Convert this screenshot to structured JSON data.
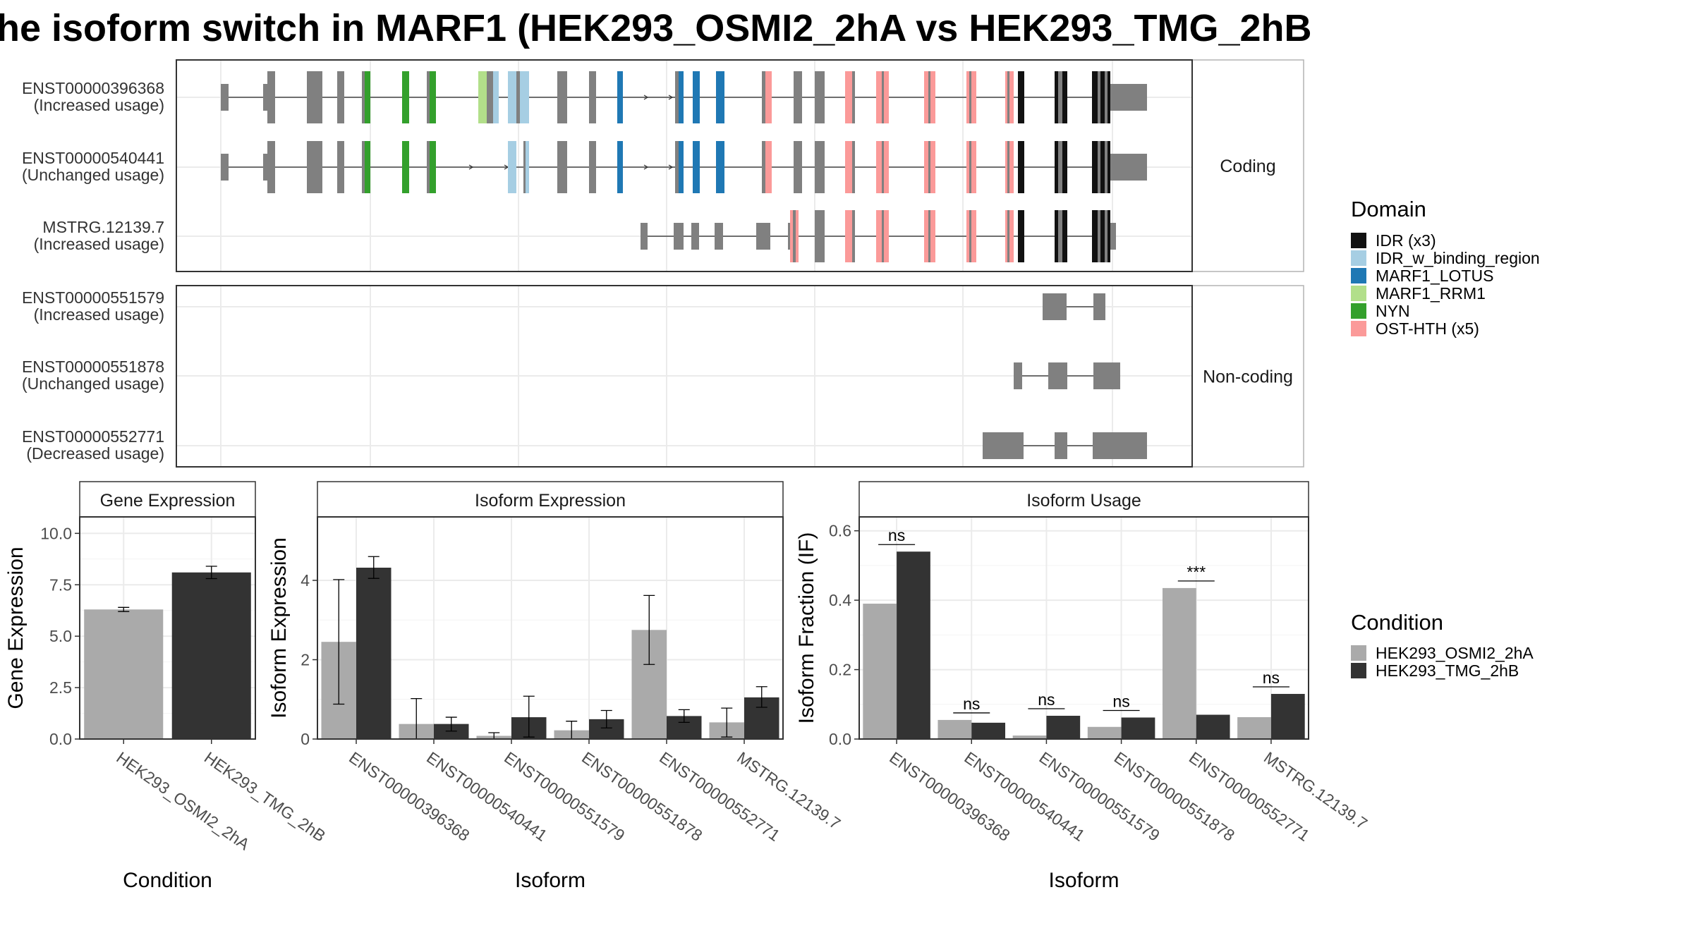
{
  "title": "he isoform switch in MARF1 (HEK293_OSMI2_2hA vs HEK293_TMG_2hB",
  "colors": {
    "osmi": "#aaaaaa",
    "tmg": "#333333",
    "exon": "#808080",
    "IDR (x3)": "#111111",
    "IDR_w_binding_region": "#a6cee3",
    "MARF1_LOTUS": "#1f78b4",
    "MARF1_RRM1": "#b2df8a",
    "NYN": "#33a02c",
    "OST-HTH (x5)": "#fb9a99"
  },
  "structure": {
    "coding_label": "Coding",
    "noncoding_label": "Non-coding",
    "coding": [
      {
        "id": "ENST00000396368",
        "usage": "(Increased usage)"
      },
      {
        "id": "ENST00000540441",
        "usage": "(Unchanged usage)"
      },
      {
        "id": "MSTRG.12139.7",
        "usage": "(Increased usage)"
      }
    ],
    "noncoding": [
      {
        "id": "ENST00000551579",
        "usage": "(Increased usage)"
      },
      {
        "id": "ENST00000551878",
        "usage": "(Unchanged usage)"
      },
      {
        "id": "ENST00000552771",
        "usage": "(Decreased usage)"
      }
    ]
  },
  "legend_domain": {
    "title": "Domain",
    "items": [
      "IDR (x3)",
      "IDR_w_binding_region",
      "MARF1_LOTUS",
      "MARF1_RRM1",
      "NYN",
      "OST-HTH (x5)"
    ]
  },
  "legend_condition": {
    "title": "Condition",
    "items": [
      "HEK293_OSMI2_2hA",
      "HEK293_TMG_2hB"
    ]
  },
  "chart_data": [
    {
      "type": "bar",
      "title": "Gene Expression",
      "xlabel": "Condition",
      "ylabel": "Gene Expression",
      "categories": [
        "HEK293_OSMI2_2hA",
        "HEK293_TMG_2hB"
      ],
      "values": [
        6.3,
        8.1
      ],
      "error_low": [
        6.2,
        7.8
      ],
      "error_high": [
        6.4,
        8.4
      ],
      "ylim": [
        0,
        10.8
      ],
      "yticks": [
        0.0,
        2.5,
        5.0,
        7.5,
        10.0
      ],
      "ytick_labels": [
        "0.0",
        "2.5",
        "5.0",
        "7.5",
        "10.0"
      ]
    },
    {
      "type": "bar",
      "title": "Isoform Expression",
      "xlabel": "Isoform",
      "ylabel": "Isoform Expression",
      "categories": [
        "ENST00000396368",
        "ENST00000540441",
        "ENST00000551579",
        "ENST00000551878",
        "ENST00000552771",
        "MSTRG.12139.7"
      ],
      "ylim": [
        0,
        5.6
      ],
      "yticks": [
        0,
        2,
        4
      ],
      "ytick_labels": [
        "0",
        "2",
        "4"
      ],
      "series": [
        {
          "name": "HEK293_OSMI2_2hA",
          "values": [
            2.45,
            0.38,
            0.08,
            0.22,
            2.75,
            0.42
          ],
          "error_low": [
            0.88,
            0.0,
            0.0,
            0.0,
            1.88,
            0.05
          ],
          "error_high": [
            4.02,
            1.02,
            0.16,
            0.45,
            3.62,
            0.78
          ]
        },
        {
          "name": "HEK293_TMG_2hB",
          "values": [
            4.32,
            0.38,
            0.55,
            0.5,
            0.58,
            1.05
          ],
          "error_low": [
            4.05,
            0.2,
            0.05,
            0.28,
            0.42,
            0.8
          ],
          "error_high": [
            4.6,
            0.55,
            1.08,
            0.72,
            0.74,
            1.32
          ]
        }
      ]
    },
    {
      "type": "bar",
      "title": "Isoform Usage",
      "xlabel": "Isoform",
      "ylabel": "Isoform Fraction (IF)",
      "categories": [
        "ENST00000396368",
        "ENST00000540441",
        "ENST00000551579",
        "ENST00000551878",
        "ENST00000552771",
        "MSTRG.12139.7"
      ],
      "ylim": [
        0,
        0.64
      ],
      "yticks": [
        0.0,
        0.2,
        0.4,
        0.6
      ],
      "ytick_labels": [
        "0.0",
        "0.2",
        "0.4",
        "0.6"
      ],
      "series": [
        {
          "name": "HEK293_OSMI2_2hA",
          "values": [
            0.39,
            0.055,
            0.01,
            0.035,
            0.435,
            0.063
          ]
        },
        {
          "name": "HEK293_TMG_2hB",
          "values": [
            0.54,
            0.047,
            0.067,
            0.062,
            0.07,
            0.13
          ]
        }
      ],
      "significance": [
        "ns",
        "ns",
        "ns",
        "ns",
        "***",
        "ns"
      ]
    }
  ]
}
